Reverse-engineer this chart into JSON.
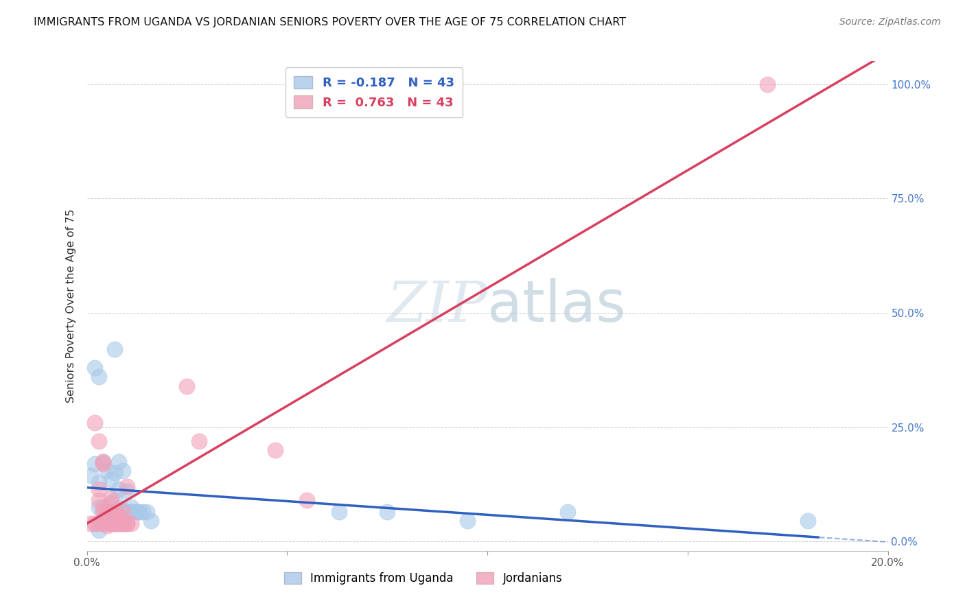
{
  "title": "IMMIGRANTS FROM UGANDA VS JORDANIAN SENIORS POVERTY OVER THE AGE OF 75 CORRELATION CHART",
  "source": "Source: ZipAtlas.com",
  "ylabel": "Seniors Poverty Over the Age of 75",
  "r_uganda": -0.187,
  "n_uganda": 43,
  "r_jordanian": 0.763,
  "n_jordanian": 43,
  "xlim_min": 0.0,
  "xlim_max": 0.2,
  "ylim_min": -0.02,
  "ylim_max": 1.05,
  "yticks": [
    0.0,
    0.25,
    0.5,
    0.75,
    1.0
  ],
  "ytick_labels": [
    "0.0%",
    "25.0%",
    "50.0%",
    "75.0%",
    "100.0%"
  ],
  "xticks": [
    0.0,
    0.05,
    0.1,
    0.15,
    0.2
  ],
  "xtick_labels": [
    "0.0%",
    "",
    "",
    "",
    "20.0%"
  ],
  "color_uganda": "#a8c8e8",
  "color_jordan": "#f0a0b8",
  "color_uganda_line": "#3060c0",
  "color_jordan_line": "#d84060",
  "watermark_color": "#ccdde8",
  "background_color": "#ffffff",
  "grid_color": "#cccccc",
  "uganda_x": [
    0.001,
    0.002,
    0.003,
    0.004,
    0.005,
    0.006,
    0.007,
    0.008,
    0.009,
    0.01,
    0.011,
    0.012,
    0.013,
    0.002,
    0.003,
    0.005,
    0.006,
    0.007,
    0.003,
    0.004,
    0.005,
    0.006,
    0.007,
    0.008,
    0.009,
    0.01,
    0.011,
    0.012,
    0.008,
    0.009,
    0.01,
    0.011,
    0.013,
    0.014,
    0.015,
    0.016,
    0.003,
    0.004,
    0.063,
    0.075,
    0.095,
    0.12,
    0.18
  ],
  "uganda_y": [
    0.145,
    0.38,
    0.36,
    0.175,
    0.065,
    0.065,
    0.15,
    0.065,
    0.065,
    0.065,
    0.075,
    0.065,
    0.065,
    0.17,
    0.13,
    0.155,
    0.135,
    0.42,
    0.075,
    0.065,
    0.065,
    0.065,
    0.09,
    0.115,
    0.07,
    0.11,
    0.065,
    0.065,
    0.175,
    0.155,
    0.065,
    0.065,
    0.065,
    0.065,
    0.065,
    0.045,
    0.025,
    0.045,
    0.065,
    0.065,
    0.045,
    0.065,
    0.045
  ],
  "jordan_x": [
    0.001,
    0.002,
    0.003,
    0.004,
    0.005,
    0.006,
    0.007,
    0.008,
    0.009,
    0.01,
    0.011,
    0.003,
    0.004,
    0.005,
    0.006,
    0.007,
    0.002,
    0.003,
    0.004,
    0.005,
    0.006,
    0.007,
    0.008,
    0.009,
    0.01,
    0.004,
    0.006,
    0.007,
    0.008,
    0.009,
    0.003,
    0.004,
    0.005,
    0.006,
    0.007,
    0.008,
    0.009,
    0.01,
    0.025,
    0.028,
    0.047,
    0.055,
    0.17
  ],
  "jordan_y": [
    0.04,
    0.04,
    0.04,
    0.04,
    0.035,
    0.04,
    0.04,
    0.04,
    0.04,
    0.04,
    0.04,
    0.22,
    0.075,
    0.065,
    0.04,
    0.055,
    0.26,
    0.09,
    0.065,
    0.055,
    0.04,
    0.04,
    0.055,
    0.04,
    0.04,
    0.175,
    0.095,
    0.065,
    0.04,
    0.04,
    0.115,
    0.17,
    0.065,
    0.085,
    0.04,
    0.055,
    0.065,
    0.12,
    0.34,
    0.22,
    0.2,
    0.09,
    1.0
  ]
}
